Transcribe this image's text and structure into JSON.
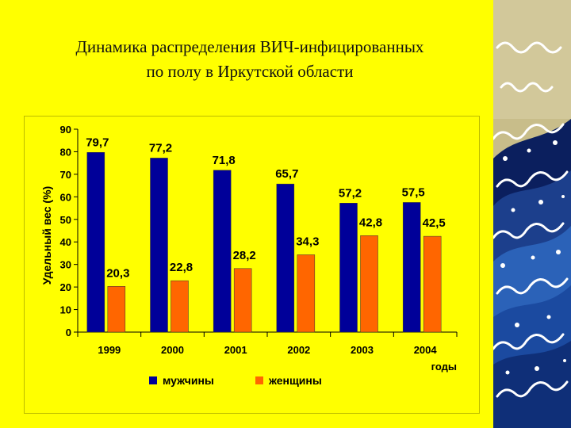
{
  "slide": {
    "title_line1": "Динамика распределения ВИЧ-инфицированных",
    "title_line2": "по полу в Иркутской области"
  },
  "colors": {
    "background": "#ffff00",
    "men": "#000099",
    "women": "#ff6600",
    "wave_dark": "#0b1f5e",
    "wave_mid": "#2b62b8",
    "wave_foam": "#ffffff",
    "panel_tan": "#c8bd8a"
  },
  "decoration": {
    "icon": "ocean-wave-illustration"
  },
  "chart_data": {
    "type": "bar",
    "categories": [
      "1999",
      "2000",
      "2001",
      "2002",
      "2003",
      "2004"
    ],
    "series": [
      {
        "name": "мужчины",
        "values": [
          79.7,
          77.2,
          71.8,
          65.7,
          57.2,
          57.5
        ],
        "labels": [
          "79,7",
          "77,2",
          "71,8",
          "65,7",
          "57,2",
          "57,5"
        ]
      },
      {
        "name": "женщины",
        "values": [
          20.3,
          22.8,
          28.2,
          34.3,
          42.8,
          42.5
        ],
        "labels": [
          "20,3",
          "22,8",
          "28,2",
          "34,3",
          "42,8",
          "42,5"
        ]
      }
    ],
    "ylabel": "Удельный вес (%)",
    "xlabel": "годы",
    "ylim": [
      0,
      90
    ],
    "yticks": [
      0,
      10,
      20,
      30,
      40,
      50,
      60,
      70,
      80,
      90
    ],
    "grid": false,
    "legend_position": "bottom"
  }
}
